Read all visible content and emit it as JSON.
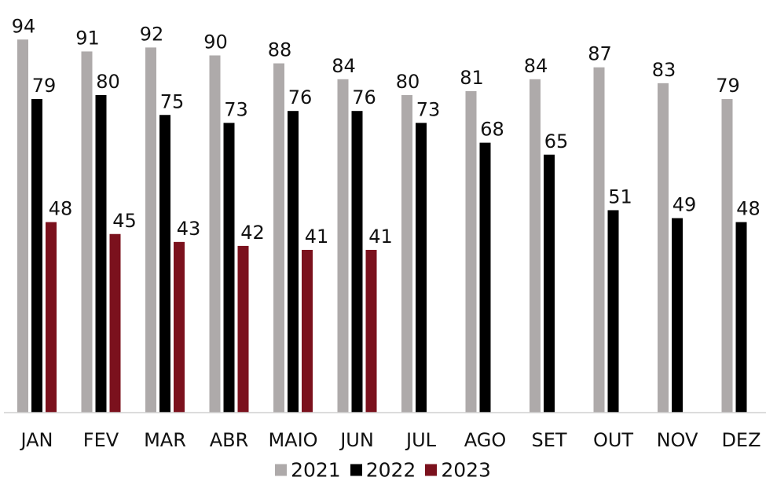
{
  "chart_data": {
    "type": "bar",
    "categories": [
      "JAN",
      "FEV",
      "MAR",
      "ABR",
      "MAIO",
      "JUN",
      "JUL",
      "AGO",
      "SET",
      "OUT",
      "NOV",
      "DEZ"
    ],
    "series": [
      {
        "name": "2021",
        "color": "#aeaaaa",
        "values": [
          94,
          91,
          92,
          90,
          88,
          84,
          80,
          81,
          84,
          87,
          83,
          79
        ]
      },
      {
        "name": "2022",
        "color": "#000000",
        "values": [
          79,
          80,
          75,
          73,
          76,
          76,
          73,
          68,
          65,
          51,
          49,
          48
        ]
      },
      {
        "name": "2023",
        "color": "#7b111d",
        "values": [
          48,
          45,
          43,
          42,
          41,
          41,
          null,
          null,
          null,
          null,
          null,
          null
        ]
      }
    ],
    "ylim": [
      0,
      100
    ],
    "grid": false,
    "legend_position": "bottom",
    "title": "",
    "xlabel": "",
    "ylabel": ""
  }
}
